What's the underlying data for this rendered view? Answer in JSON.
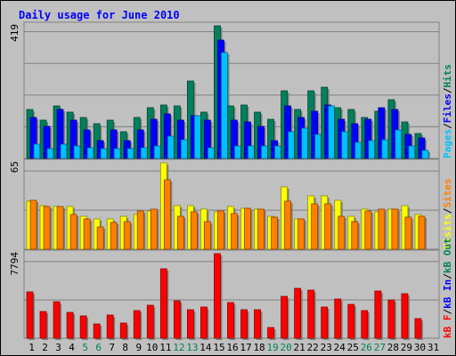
{
  "title": "Daily usage for June 2010",
  "colors": {
    "background": "#c0c0c0",
    "title": "#0000ff",
    "hits": "#00805c",
    "files": "#0000ff",
    "pages": "#00c0ff",
    "visits": "#ffff00",
    "sites": "#ff8000",
    "kb_in": "#0000ff",
    "kb_out": "#00805c",
    "kb_f": "#ff0000",
    "weekend_label": "#00805c",
    "weekday_label": "#000000",
    "separator": "#000000"
  },
  "chart_data": [
    {
      "type": "bar",
      "panel": "top",
      "ymax_label": "419",
      "ylim": [
        0,
        419
      ],
      "grid": true,
      "legend_right": [
        "Pages",
        "Files",
        "Hits"
      ],
      "legend_separator": "/",
      "categories": [
        "1",
        "2",
        "3",
        "4",
        "5",
        "6",
        "7",
        "8",
        "9",
        "10",
        "11",
        "12",
        "13",
        "14",
        "15",
        "16",
        "17",
        "18",
        "19",
        "20",
        "21",
        "22",
        "23",
        "24",
        "25",
        "26",
        "27",
        "28",
        "29",
        "30",
        "31"
      ],
      "weekend_days": [
        "5",
        "6",
        "12",
        "13",
        "19",
        "20",
        "26",
        "27"
      ],
      "series": [
        {
          "name": "Hits",
          "values": [
            155,
            120,
            165,
            145,
            130,
            110,
            120,
            85,
            130,
            160,
            170,
            165,
            245,
            145,
            419,
            165,
            170,
            145,
            125,
            215,
            155,
            215,
            225,
            160,
            155,
            130,
            150,
            185,
            115,
            80,
            0
          ]
        },
        {
          "name": "Files",
          "values": [
            130,
            100,
            155,
            120,
            90,
            55,
            90,
            55,
            90,
            125,
            140,
            120,
            135,
            120,
            375,
            120,
            115,
            100,
            55,
            165,
            130,
            150,
            170,
            125,
            110,
            125,
            160,
            155,
            75,
            65,
            0
          ]
        },
        {
          "name": "Pages",
          "values": [
            45,
            30,
            45,
            40,
            35,
            30,
            30,
            30,
            35,
            40,
            70,
            60,
            135,
            35,
            335,
            40,
            40,
            40,
            40,
            85,
            95,
            75,
            165,
            85,
            50,
            55,
            60,
            90,
            40,
            25,
            0
          ]
        }
      ]
    },
    {
      "type": "bar",
      "panel": "middle",
      "ymax_label": "65",
      "ylim": [
        0,
        65
      ],
      "grid": true,
      "legend_right": [
        "Visits",
        "Sites"
      ],
      "legend_separator": "/",
      "categories": [
        "1",
        "2",
        "3",
        "4",
        "5",
        "6",
        "7",
        "8",
        "9",
        "10",
        "11",
        "12",
        "13",
        "14",
        "15",
        "16",
        "17",
        "18",
        "19",
        "20",
        "21",
        "22",
        "23",
        "24",
        "25",
        "26",
        "27",
        "28",
        "29",
        "30",
        "31"
      ],
      "series": [
        {
          "name": "Visits",
          "values": [
            36,
            33,
            32,
            32,
            25,
            23,
            23,
            25,
            26,
            29,
            65,
            33,
            33,
            30,
            28,
            32,
            31,
            30,
            25,
            47,
            23,
            40,
            40,
            37,
            25,
            30,
            28,
            30,
            33,
            26,
            0
          ]
        },
        {
          "name": "Sites",
          "values": [
            37,
            32,
            32,
            26,
            23,
            17,
            20,
            21,
            29,
            30,
            52,
            25,
            28,
            21,
            29,
            27,
            31,
            30,
            24,
            36,
            23,
            34,
            34,
            25,
            21,
            29,
            30,
            30,
            24,
            25,
            0
          ]
        }
      ]
    },
    {
      "type": "bar",
      "panel": "bottom",
      "ymax_label": "7794",
      "ylim": [
        0,
        7794
      ],
      "grid": true,
      "legend_right": [
        "kB F",
        "kB In",
        "kB Out"
      ],
      "legend_separator": "/",
      "categories": [
        "1",
        "2",
        "3",
        "4",
        "5",
        "6",
        "7",
        "8",
        "9",
        "10",
        "11",
        "12",
        "13",
        "14",
        "15",
        "16",
        "17",
        "18",
        "19",
        "20",
        "21",
        "22",
        "23",
        "24",
        "25",
        "26",
        "27",
        "28",
        "29",
        "30",
        "31"
      ],
      "series": [
        {
          "name": "kB F",
          "values": [
            4265,
            2485,
            3340,
            2415,
            2060,
            1335,
            2165,
            1425,
            2515,
            3020,
            6395,
            3465,
            2660,
            2860,
            7794,
            3315,
            2610,
            2585,
            1010,
            3845,
            4575,
            4460,
            2835,
            3625,
            3140,
            2540,
            4330,
            3515,
            4115,
            1810,
            0
          ]
        }
      ]
    }
  ]
}
